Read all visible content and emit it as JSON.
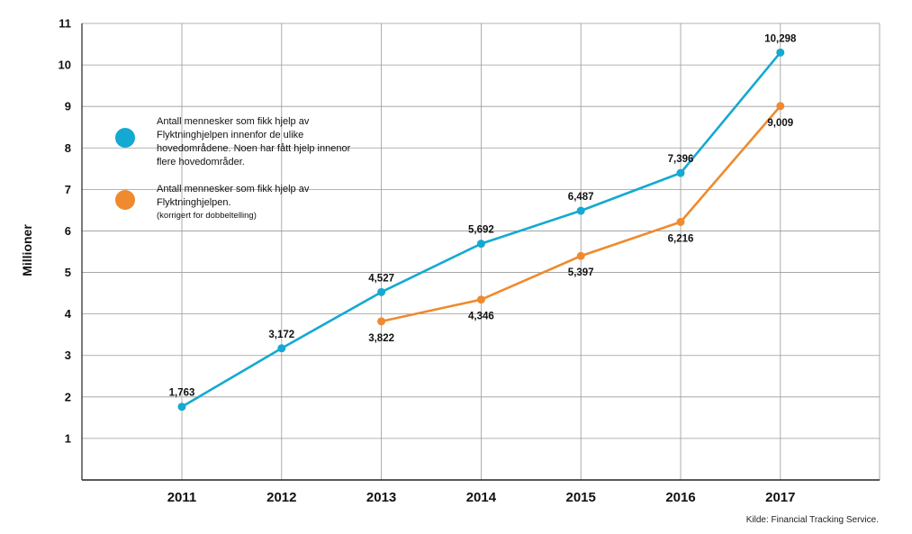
{
  "chart_data": {
    "type": "line",
    "categories": [
      "2011",
      "2012",
      "2013",
      "2014",
      "2015",
      "2016",
      "2017"
    ],
    "ylabel": "Millioner",
    "ylim": [
      0,
      11
    ],
    "yticks": [
      "1",
      "2",
      "3",
      "4",
      "5",
      "6",
      "7",
      "8",
      "9",
      "10",
      "11"
    ],
    "grid": true,
    "legend_position": "top-left",
    "series": [
      {
        "name": "Antall mennesker som fikk hjelp av Flyktninghjelpen innenfor de ulike hovedområdene. Noen har fått hjelp innenor flere hovedområder.",
        "color": "#14a9d2",
        "values": [
          1.763,
          3.172,
          4.527,
          5.692,
          6.487,
          7.396,
          10.298
        ],
        "labels": [
          "1,763",
          "3,172",
          "4,527",
          "5,692",
          "6,487",
          "7,396",
          "10,298"
        ]
      },
      {
        "name": "Antall mennesker som fikk hjelp av Flyktninghjelpen.",
        "note": "(korrigert for dobbeltelling)",
        "color": "#ef8a2e",
        "values": [
          null,
          null,
          3.822,
          4.346,
          5.397,
          6.216,
          9.009
        ],
        "labels": [
          null,
          null,
          "3,822",
          "4,346",
          "5,397",
          "6,216",
          "9,009"
        ]
      }
    ]
  },
  "source": "Kilde: Financial Tracking Service."
}
